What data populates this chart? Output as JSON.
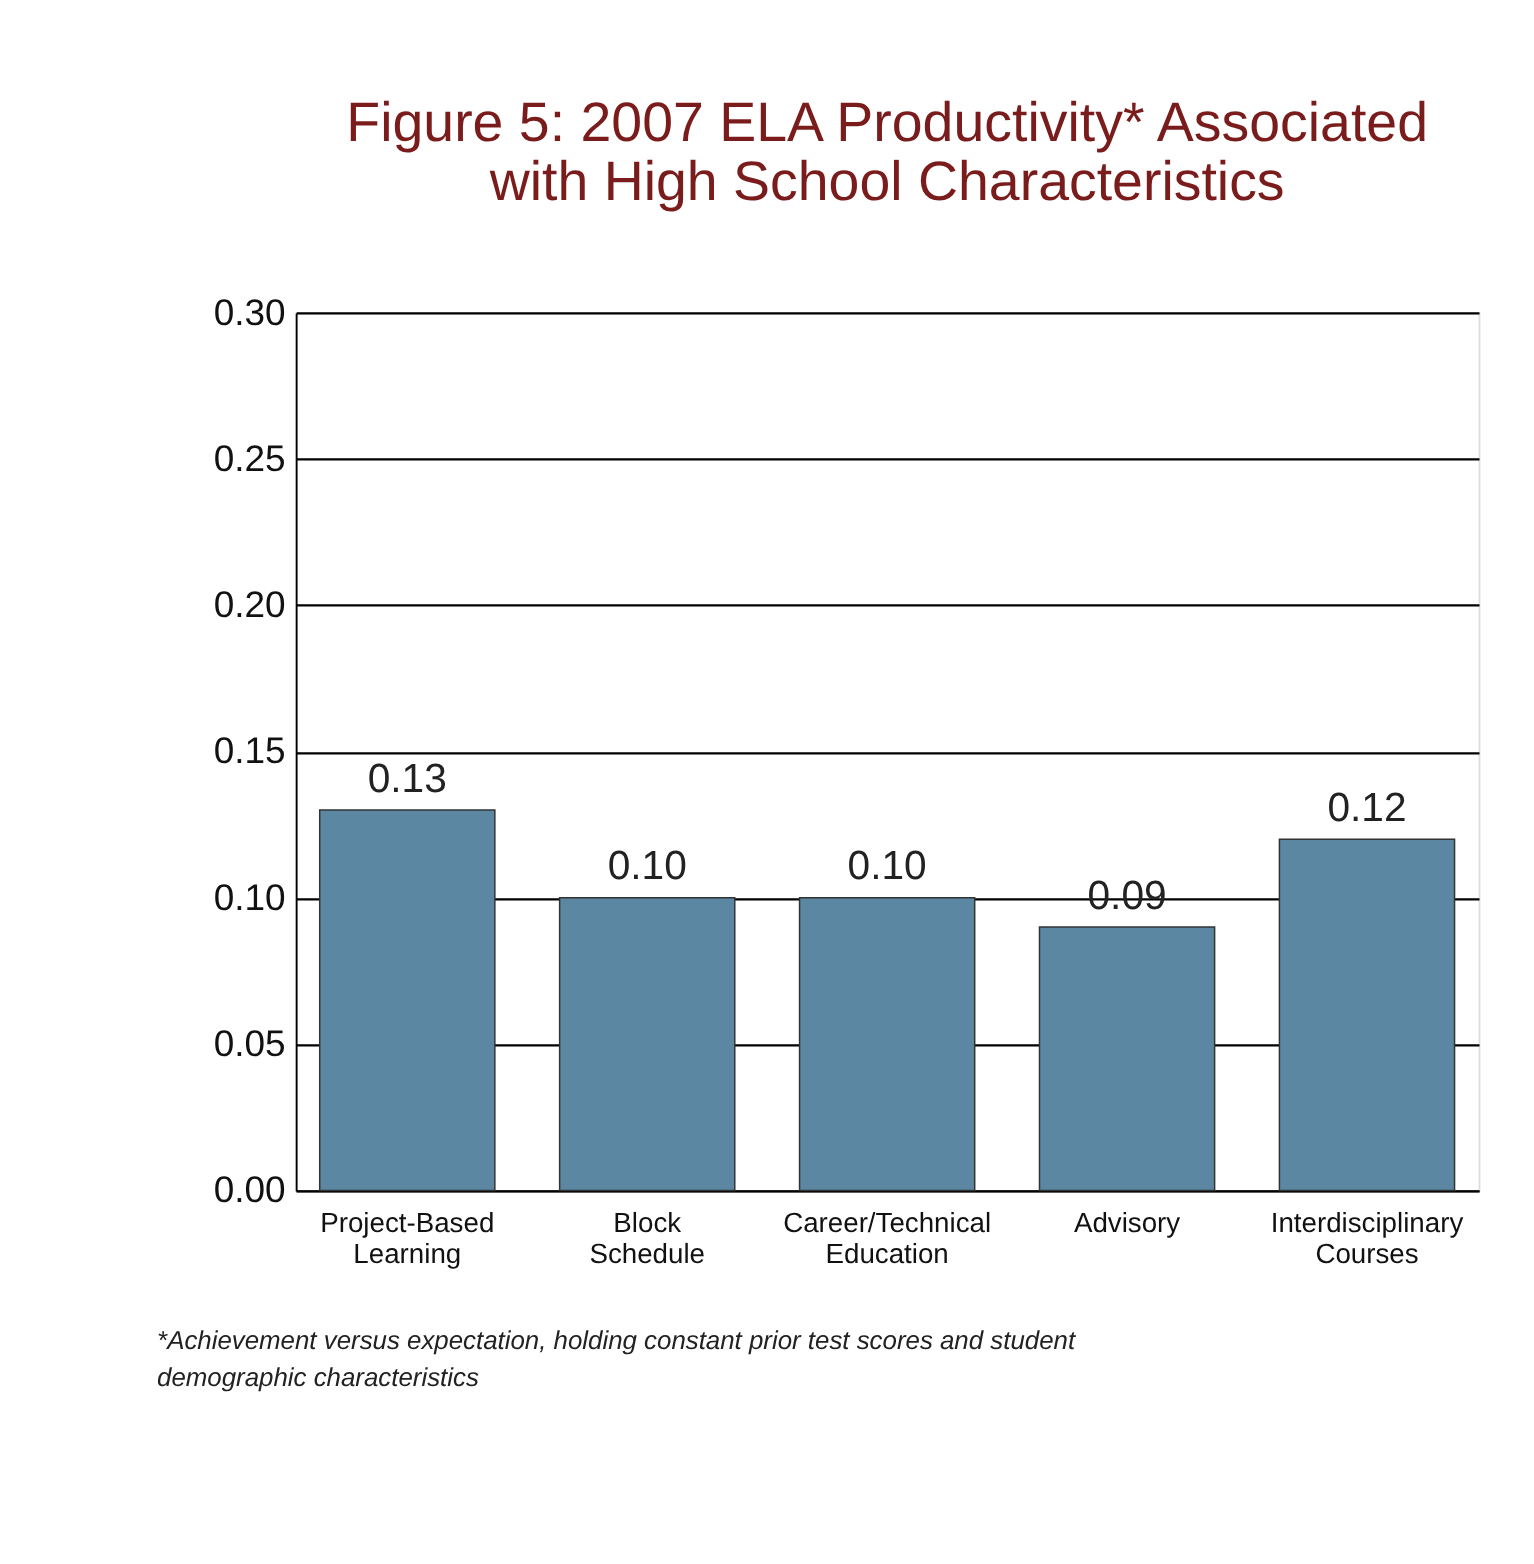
{
  "chart_data": {
    "type": "bar",
    "title": [
      "Figure 5: 2007 ELA Productivity* Associated",
      "with High School Characteristics"
    ],
    "categories": [
      "Project-Based Learning",
      "Block Schedule",
      "Career/Technical Education",
      "Advisory",
      "Interdisciplinary Courses"
    ],
    "values": [
      0.13,
      0.1,
      0.1,
      0.09,
      0.12
    ],
    "value_labels": [
      "0.13",
      "0.10",
      "0.10",
      "0.09",
      "0.12"
    ],
    "color": "#5b87a3",
    "ylim": [
      0,
      0.3
    ],
    "yticks": [
      {
        "value": 0,
        "label": "0.00"
      },
      {
        "value": 0.05,
        "label": "0.05"
      },
      {
        "value": 0.1,
        "label": "0.10"
      },
      {
        "value": 0.15,
        "label": "0.15"
      },
      {
        "value": 0.2,
        "label": "0.20"
      },
      {
        "value": 0.25,
        "label": "0.25"
      },
      {
        "value": 0.3,
        "label": "0.30"
      }
    ],
    "grid": "y",
    "annotations": [
      "*Achievement versus expectation, holding constant prior test scores and student demographic characteristics"
    ]
  }
}
